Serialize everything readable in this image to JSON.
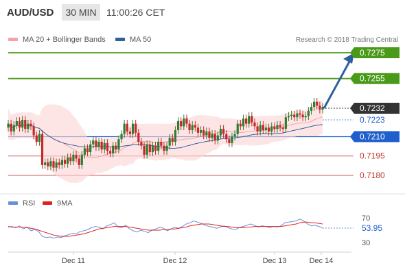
{
  "header": {
    "symbol": "AUD/USD",
    "timeframe": "30 MIN",
    "time": "11:00:26 CET"
  },
  "legend": [
    {
      "label": "MA 20 + Bollinger Bands",
      "color": "#f4a3a3"
    },
    {
      "label": "MA 50",
      "color": "#2f5f9e"
    }
  ],
  "copyright": "Research © 2018 Trading Central",
  "colors": {
    "up": "#2e7d32",
    "down": "#c62828",
    "target": "#4a9a1a",
    "pivot": "#1f5fcc",
    "support": "#d35a5a",
    "current": "#333333",
    "arrow": "#2f5f9e",
    "rsi": "#6b8fd6",
    "ma9": "#e02020"
  },
  "chart_data": [
    {
      "type": "candlestick",
      "x_labels": [
        "Dec 11",
        "Dec 12",
        "Dec 13",
        "Dec 14"
      ],
      "ylim": [
        0.7175,
        0.7285
      ],
      "current_price": "0.7232",
      "levels": [
        {
          "label": "0.7275",
          "value": 0.7275,
          "kind": "target"
        },
        {
          "label": "0.7255",
          "value": 0.7255,
          "kind": "target"
        },
        {
          "label": "0.7232",
          "value": 0.7232,
          "kind": "current"
        },
        {
          "label": "0.7223",
          "value": 0.7223,
          "kind": "info"
        },
        {
          "label": "0.7210",
          "value": 0.721,
          "kind": "pivot"
        },
        {
          "label": "0.7195",
          "value": 0.7195,
          "kind": "support"
        },
        {
          "label": "0.7180",
          "value": 0.718,
          "kind": "support"
        }
      ],
      "candles": [
        [
          0.7217,
          0.722
        ],
        [
          0.722,
          0.7214
        ],
        [
          0.7214,
          0.7219
        ],
        [
          0.7219,
          0.7222
        ],
        [
          0.7222,
          0.7217
        ],
        [
          0.7217,
          0.7223
        ],
        [
          0.7223,
          0.7216
        ],
        [
          0.7216,
          0.722
        ],
        [
          0.722,
          0.7218
        ],
        [
          0.7218,
          0.7211
        ],
        [
          0.7211,
          0.7206
        ],
        [
          0.7206,
          0.7212
        ],
        [
          0.7212,
          0.7188
        ],
        [
          0.7188,
          0.719
        ],
        [
          0.719,
          0.7187
        ],
        [
          0.7187,
          0.7191
        ],
        [
          0.7191,
          0.7186
        ],
        [
          0.7186,
          0.719
        ],
        [
          0.719,
          0.7188
        ],
        [
          0.7188,
          0.7192
        ],
        [
          0.7192,
          0.7189
        ],
        [
          0.7189,
          0.7194
        ],
        [
          0.7194,
          0.7191
        ],
        [
          0.7191,
          0.7196
        ],
        [
          0.7196,
          0.7193
        ],
        [
          0.7193,
          0.7188
        ],
        [
          0.7188,
          0.7196
        ],
        [
          0.7196,
          0.7201
        ],
        [
          0.7201,
          0.7198
        ],
        [
          0.7198,
          0.7204
        ],
        [
          0.7204,
          0.7207
        ],
        [
          0.7207,
          0.7202
        ],
        [
          0.7202,
          0.7206
        ],
        [
          0.7206,
          0.72
        ],
        [
          0.72,
          0.7205
        ],
        [
          0.7205,
          0.7199
        ],
        [
          0.7199,
          0.7197
        ],
        [
          0.7197,
          0.7203
        ],
        [
          0.7203,
          0.72
        ],
        [
          0.72,
          0.7208
        ],
        [
          0.7208,
          0.7212
        ],
        [
          0.7212,
          0.722
        ],
        [
          0.722,
          0.7214
        ],
        [
          0.7214,
          0.7212
        ],
        [
          0.7212,
          0.722
        ],
        [
          0.722,
          0.7213
        ],
        [
          0.7213,
          0.7206
        ],
        [
          0.7206,
          0.7203
        ],
        [
          0.7203,
          0.7196
        ],
        [
          0.7196,
          0.7204
        ],
        [
          0.7204,
          0.7198
        ],
        [
          0.7198,
          0.7203
        ],
        [
          0.7203,
          0.7199
        ],
        [
          0.7199,
          0.7206
        ],
        [
          0.7206,
          0.7203
        ],
        [
          0.7203,
          0.7199
        ],
        [
          0.7199,
          0.7203
        ],
        [
          0.7203,
          0.7209
        ],
        [
          0.7209,
          0.7206
        ],
        [
          0.7206,
          0.7215
        ],
        [
          0.7215,
          0.7222
        ],
        [
          0.7222,
          0.7218
        ],
        [
          0.7218,
          0.7224
        ],
        [
          0.7224,
          0.722
        ],
        [
          0.722,
          0.7215
        ],
        [
          0.7215,
          0.7219
        ],
        [
          0.7219,
          0.7217
        ],
        [
          0.7217,
          0.7213
        ],
        [
          0.7213,
          0.7215
        ],
        [
          0.7215,
          0.7211
        ],
        [
          0.7211,
          0.7214
        ],
        [
          0.7214,
          0.7209
        ],
        [
          0.7209,
          0.7212
        ],
        [
          0.7212,
          0.7207
        ],
        [
          0.7207,
          0.7211
        ],
        [
          0.7211,
          0.7216
        ],
        [
          0.7216,
          0.7212
        ],
        [
          0.7212,
          0.7208
        ],
        [
          0.7208,
          0.7205
        ],
        [
          0.7205,
          0.721
        ],
        [
          0.721,
          0.7212
        ],
        [
          0.7212,
          0.722
        ],
        [
          0.722,
          0.7218
        ],
        [
          0.7218,
          0.7224
        ],
        [
          0.7224,
          0.722
        ],
        [
          0.722,
          0.7226
        ],
        [
          0.7226,
          0.7221
        ],
        [
          0.7221,
          0.7218
        ],
        [
          0.7218,
          0.7214
        ],
        [
          0.7214,
          0.7219
        ],
        [
          0.7219,
          0.7215
        ],
        [
          0.7215,
          0.7217
        ],
        [
          0.7217,
          0.7214
        ],
        [
          0.7214,
          0.7218
        ],
        [
          0.7218,
          0.7216
        ],
        [
          0.7216,
          0.7219
        ],
        [
          0.7219,
          0.7217
        ],
        [
          0.7217,
          0.7216
        ],
        [
          0.7216,
          0.7225
        ],
        [
          0.7225,
          0.7226
        ],
        [
          0.7226,
          0.7227
        ],
        [
          0.7227,
          0.7225
        ],
        [
          0.7225,
          0.7228
        ],
        [
          0.7228,
          0.7227
        ],
        [
          0.7227,
          0.7225
        ],
        [
          0.7225,
          0.7226
        ],
        [
          0.7226,
          0.723
        ],
        [
          0.723,
          0.7233
        ],
        [
          0.7233,
          0.7237
        ],
        [
          0.7237,
          0.7234
        ],
        [
          0.7234,
          0.7231
        ],
        [
          0.7231,
          0.7233
        ]
      ]
    },
    {
      "type": "line",
      "x_labels": [
        "Dec 11",
        "Dec 12",
        "Dec 13",
        "Dec 14"
      ],
      "ylim": [
        20,
        80
      ],
      "y_ticks": [
        "70",
        "30"
      ],
      "current_value": "53.95",
      "legend": [
        {
          "label": "RSI",
          "color": "#6b8fd6"
        },
        {
          "label": "9MA",
          "color": "#e02020"
        }
      ],
      "series": [
        {
          "name": "RSI",
          "values": [
            55,
            56,
            54,
            57,
            52,
            55,
            49,
            51,
            48,
            40,
            38,
            39,
            37,
            39,
            38,
            41,
            43,
            45,
            44,
            48,
            49,
            51,
            54,
            56,
            55,
            52,
            57,
            59,
            62,
            55,
            54,
            58,
            52,
            49,
            47,
            50,
            48,
            46,
            50,
            52,
            55,
            53,
            49,
            52,
            55,
            53,
            56,
            60,
            62,
            65,
            63,
            61,
            58,
            56,
            55,
            53,
            55,
            57,
            54,
            52,
            51,
            54,
            56,
            58,
            60,
            58,
            55,
            57,
            56,
            54,
            56,
            55,
            57,
            62,
            63,
            64,
            65,
            68,
            65,
            60,
            57,
            58,
            56,
            54
          ]
        },
        {
          "name": "9MA",
          "values": [
            56,
            55,
            55,
            55,
            55,
            54,
            53,
            52,
            50,
            48,
            46,
            44,
            42,
            41,
            40,
            40,
            40,
            41,
            42,
            43,
            44,
            46,
            48,
            50,
            52,
            53,
            54,
            55,
            56,
            56,
            56,
            56,
            55,
            54,
            53,
            52,
            51,
            50,
            50,
            50,
            50,
            51,
            51,
            52,
            52,
            53,
            54,
            55,
            57,
            58,
            59,
            60,
            60,
            60,
            59,
            58,
            57,
            56,
            56,
            55,
            54,
            54,
            54,
            55,
            55,
            56,
            56,
            56,
            56,
            56,
            56,
            56,
            56,
            57,
            58,
            59,
            60,
            62,
            63,
            63,
            62,
            62,
            61,
            60
          ]
        }
      ]
    }
  ]
}
